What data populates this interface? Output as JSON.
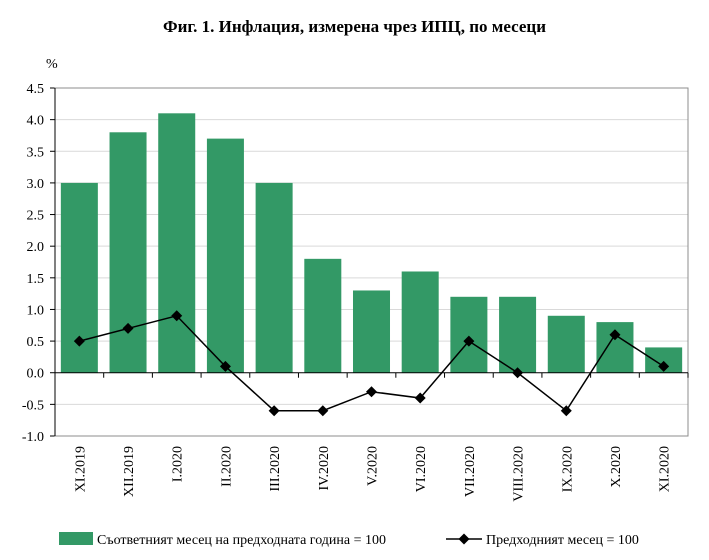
{
  "chart_data": {
    "type": "bar",
    "title": "Фиг. 1. Инфлация, измерена чрез ИПЦ, по месеци",
    "ylabel": "%",
    "xlabel": "",
    "ylim": [
      -1.0,
      4.5
    ],
    "ystep": 0.5,
    "yticks": [
      "4.5",
      "4.0",
      "3.5",
      "3.0",
      "2.5",
      "2.0",
      "1.5",
      "1.0",
      "0.5",
      "0.0",
      "-0.5",
      "-1.0"
    ],
    "categories": [
      "XI.2019",
      "XII.2019",
      "I.2020",
      "II.2020",
      "III.2020",
      "IV.2020",
      "V.2020",
      "VI.2020",
      "VII.2020",
      "VIII.2020",
      "IX.2020",
      "X.2020",
      "XI.2020"
    ],
    "series": [
      {
        "name": "Съответният месец на предходната година = 100",
        "type": "bar",
        "color": "#339966",
        "values": [
          3.0,
          3.8,
          4.1,
          3.7,
          3.0,
          1.8,
          1.3,
          1.6,
          1.2,
          1.2,
          0.9,
          0.8,
          0.4
        ]
      },
      {
        "name": "Предходният месец = 100",
        "type": "line",
        "color": "#000000",
        "values": [
          0.5,
          0.7,
          0.9,
          0.1,
          -0.6,
          -0.6,
          -0.3,
          -0.4,
          0.5,
          0.0,
          -0.6,
          0.6,
          0.1
        ]
      }
    ],
    "legend_position": "bottom"
  }
}
